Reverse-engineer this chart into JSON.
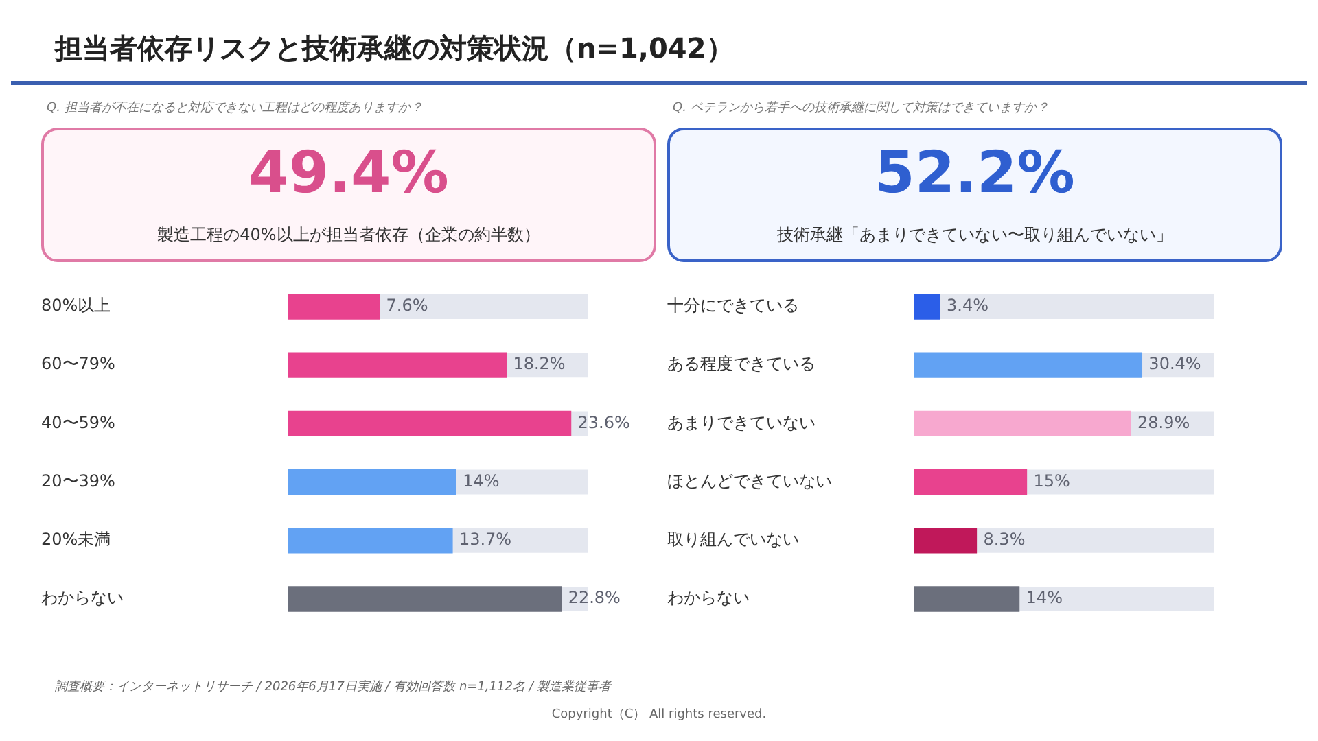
{
  "chart_data": [
    {
      "type": "bar",
      "orientation": "horizontal",
      "title": "担当者依存リスクと技術承継の対策状況（n=1,042）",
      "subtitle": "Q. 担当者が不在になると対応できない工程はどの程度ありますか？",
      "annotations": [
        "49.4%",
        "製造工程の40%以上が担当者依存（企業の約半数）",
        "調査概要：インターネットリサーチ / 2026年6月17日実施 / 有効回答数 n=1,112名 / 製造業従事者"
      ],
      "categories": [
        "80%以上",
        "60〜79%",
        "40〜59%",
        "20〜39%",
        "20%未満",
        "わからない"
      ],
      "values": [
        7.6,
        18.2,
        23.6,
        14,
        13.7,
        22.8
      ],
      "colors": [
        "#e8428e",
        "#e8428e",
        "#e8428e",
        "#62a2f3",
        "#62a2f3",
        "#6b6f7c"
      ],
      "value_labels": [
        "7.6%",
        "18.2%",
        "23.6%",
        "14%",
        "13.7%",
        "22.8%"
      ],
      "tick_labels": "y"
    },
    {
      "type": "bar",
      "orientation": "horizontal",
      "subtitle": "Q. ベテランから若手への技術承継に関して対策はできていますか？",
      "annotations": [
        "52.2%",
        "技術承継「あまりできていない〜取り組んでいない」",
        "Copyright（C） All rights reserved."
      ],
      "categories": [
        "十分にできている",
        "ある程度できている",
        "あまりできていない",
        "ほとんどできていない",
        "取り組んでいない",
        "わからない"
      ],
      "values": [
        3.4,
        30.4,
        28.9,
        15,
        8.3,
        14
      ],
      "colors": [
        "#2b5ee8",
        "#62a2f3",
        "#f7a8cf",
        "#e8428e",
        "#c0185a",
        "#6b6f7c"
      ],
      "value_labels": [
        "3.4%",
        "30.4%",
        "28.9%",
        "15%",
        "8.3%",
        "14%"
      ],
      "tick_labels": "y"
    }
  ]
}
